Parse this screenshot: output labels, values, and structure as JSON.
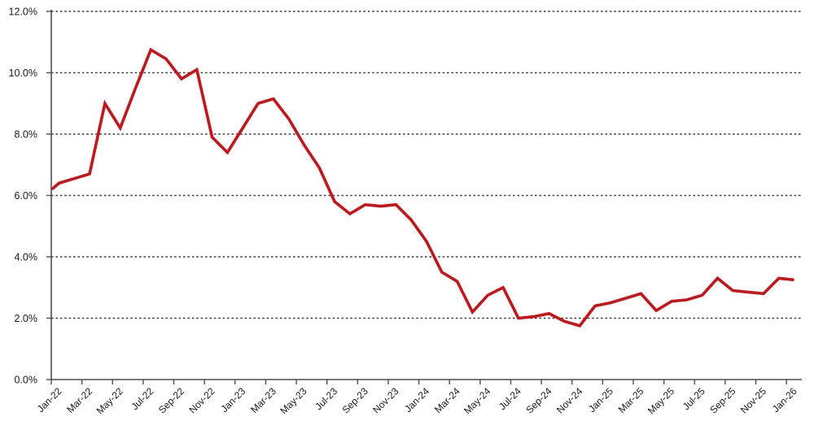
{
  "colors": {
    "series": "#CC1117",
    "grid": "#3f3f3f",
    "axis": "#4d4d4d",
    "text": "#1a1a1a",
    "background": "#ffffff"
  },
  "chart_data": {
    "type": "line",
    "title": "",
    "xlabel": "",
    "ylabel": "",
    "legend": "none",
    "grid": "horizontal-dashed",
    "ylim": [
      0,
      12
    ],
    "ytick_step": 2,
    "y_tick_labels": [
      "0.0%",
      "2.0%",
      "4.0%",
      "6.0%",
      "8.0%",
      "10.0%",
      "12.0%"
    ],
    "left_edge_value": 6.2,
    "categories": [
      "Jan-22",
      "Feb-22",
      "Mar-22",
      "Apr-22",
      "May-22",
      "Jun-22",
      "Jul-22",
      "Aug-22",
      "Sep-22",
      "Oct-22",
      "Nov-22",
      "Dec-22",
      "Jan-23",
      "Feb-23",
      "Mar-23",
      "Apr-23",
      "May-23",
      "Jun-23",
      "Jul-23",
      "Aug-23",
      "Sep-23",
      "Oct-23",
      "Nov-23",
      "Dec-23",
      "Jan-24",
      "Feb-24",
      "Mar-24",
      "Apr-24",
      "May-24",
      "Jun-24",
      "Jul-24",
      "Aug-24",
      "Sep-24",
      "Oct-24",
      "Nov-24",
      "Dec-24",
      "Jan-25",
      "Feb-25",
      "Mar-25",
      "Apr-25",
      "May-25",
      "Jun-25",
      "Jul-25",
      "Aug-25",
      "Sep-25",
      "Oct-25",
      "Nov-25",
      "Dec-25",
      "Jan-26"
    ],
    "x_tick_labels": [
      "Jan-22",
      "Mar-22",
      "May-22",
      "Jul-22",
      "Sep-22",
      "Nov-22",
      "Jan-23",
      "Mar-23",
      "May-23",
      "Jul-23",
      "Sep-23",
      "Nov-23",
      "Jan-24",
      "Mar-24",
      "May-24",
      "Jul-24",
      "Sep-24",
      "Nov-24",
      "Jan-25",
      "Mar-25",
      "May-25",
      "Jul-25",
      "Sep-25",
      "Nov-25",
      "Jan-26"
    ],
    "series": [
      {
        "name": "",
        "color": "#CC1117",
        "values": [
          6.4,
          6.55,
          6.7,
          9.0,
          8.2,
          9.5,
          10.75,
          10.45,
          9.8,
          10.1,
          7.9,
          7.4,
          8.2,
          9.0,
          9.15,
          8.5,
          7.65,
          6.9,
          5.8,
          5.4,
          5.7,
          5.65,
          5.7,
          5.2,
          4.5,
          3.5,
          3.2,
          2.2,
          2.75,
          3.0,
          2.0,
          2.05,
          2.15,
          1.9,
          1.75,
          2.4,
          2.5,
          2.65,
          2.8,
          2.25,
          2.55,
          2.6,
          2.75,
          3.3,
          2.9,
          2.85,
          2.8,
          3.3,
          3.25
        ]
      }
    ]
  }
}
